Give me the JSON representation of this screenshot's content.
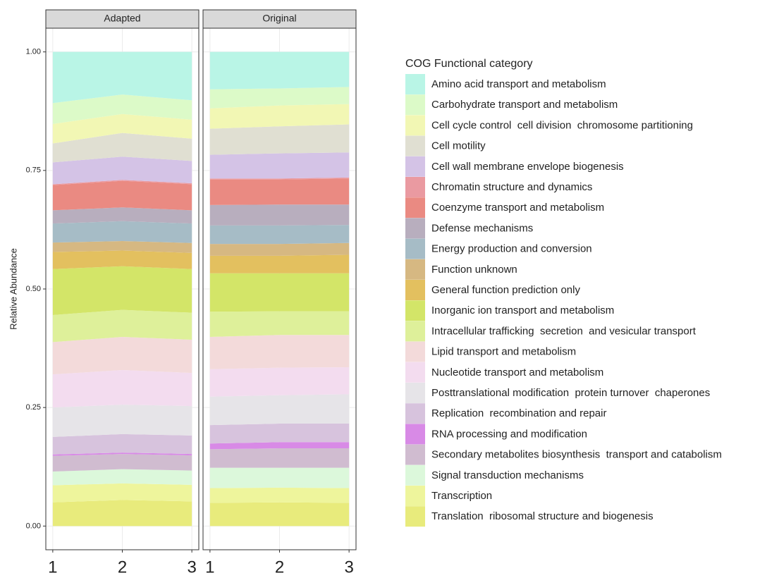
{
  "chart_data": [
    {
      "type": "area",
      "title": "Adapted",
      "ylabel": "Relative Abundance",
      "legend_title": "COG Functional category",
      "x": [
        1,
        2,
        3
      ],
      "xlim": [
        0.9,
        3.1
      ],
      "xticks": [
        1,
        2,
        3
      ],
      "ylim": [
        -0.05,
        1.05
      ],
      "yticks": [
        {
          "value": 0,
          "label": "0.00"
        },
        {
          "value": 0.25,
          "label": "0.25"
        },
        {
          "value": 0.5,
          "label": "0.50"
        },
        {
          "value": 0.75,
          "label": "0.75"
        },
        {
          "value": 1,
          "label": "1.00"
        }
      ],
      "grid": true,
      "stacked": true,
      "series": [
        {
          "name": "Amino acid transport and metabolism",
          "color": "#b9f5e6",
          "values": [
            0.108,
            0.09,
            0.102
          ]
        },
        {
          "name": "Carbohydrate transport and metabolism",
          "color": "#dcfac8",
          "values": [
            0.044,
            0.041,
            0.041
          ]
        },
        {
          "name": "Cell cycle control  cell division  chromosome partitioning",
          "color": "#f2f7b4",
          "values": [
            0.041,
            0.04,
            0.04
          ]
        },
        {
          "name": "Cell motility",
          "color": "#e0dfd2",
          "values": [
            0.04,
            0.05,
            0.047
          ]
        },
        {
          "name": "Cell wall membrane envelope biogenesis",
          "color": "#d4c3e6",
          "values": [
            0.046,
            0.049,
            0.047
          ]
        },
        {
          "name": "Chromatin structure and dynamics",
          "color": "#ea9aa1",
          "values": [
            0.002,
            0.002,
            0.002
          ]
        },
        {
          "name": "Coenzyme transport and metabolism",
          "color": "#ea8a82",
          "values": [
            0.053,
            0.056,
            0.055
          ]
        },
        {
          "name": "Defense mechanisms",
          "color": "#b8aebe",
          "values": [
            0.028,
            0.029,
            0.028
          ]
        },
        {
          "name": "Energy production and conversion",
          "color": "#a6bcc6",
          "values": [
            0.04,
            0.042,
            0.041
          ]
        },
        {
          "name": "Function unknown",
          "color": "#d6b882",
          "values": [
            0.02,
            0.02,
            0.021
          ]
        },
        {
          "name": "General function prediction only",
          "color": "#e3c05f",
          "values": [
            0.036,
            0.033,
            0.034
          ]
        },
        {
          "name": "Inorganic ion transport and metabolism",
          "color": "#d3e568",
          "values": [
            0.097,
            0.092,
            0.092
          ]
        },
        {
          "name": "Intracellular trafficking  secretion  and vesicular transport",
          "color": "#def09a",
          "values": [
            0.057,
            0.057,
            0.057
          ]
        },
        {
          "name": "Lipid transport and metabolism",
          "color": "#f3dada",
          "values": [
            0.068,
            0.07,
            0.07
          ]
        },
        {
          "name": "Nucleotide transport and metabolism",
          "color": "#f3dcef",
          "values": [
            0.07,
            0.073,
            0.07
          ]
        },
        {
          "name": "Posttranslational modification  protein turnover  chaperones",
          "color": "#e6e4e8",
          "values": [
            0.062,
            0.062,
            0.062
          ]
        },
        {
          "name": "Replication  recombination and repair",
          "color": "#d7c3dd",
          "values": [
            0.037,
            0.039,
            0.039
          ]
        },
        {
          "name": "RNA processing and modification",
          "color": "#d88ae6",
          "values": [
            0.003,
            0.003,
            0.003
          ]
        },
        {
          "name": "Secondary metabolites biosynthesis  transport and catabolism",
          "color": "#d0bcd0",
          "values": [
            0.033,
            0.032,
            0.032
          ]
        },
        {
          "name": "Signal transduction mechanisms",
          "color": "#dcf8db",
          "values": [
            0.029,
            0.03,
            0.03
          ]
        },
        {
          "name": "Transcription",
          "color": "#eef59c",
          "values": [
            0.036,
            0.035,
            0.035
          ]
        },
        {
          "name": "Translation  ribosomal structure and biogenesis",
          "color": "#e8eb7c",
          "values": [
            0.05,
            0.055,
            0.052
          ]
        }
      ]
    },
    {
      "type": "area",
      "title": "Original",
      "x": [
        1,
        2,
        3
      ],
      "xlim": [
        0.9,
        3.1
      ],
      "xticks": [
        1,
        2,
        3
      ],
      "ylim": [
        -0.05,
        1.05
      ],
      "grid": true,
      "stacked": true,
      "series": [
        {
          "name": "Amino acid transport and metabolism",
          "color": "#b9f5e6",
          "values": [
            0.079,
            0.077,
            0.074
          ]
        },
        {
          "name": "Carbohydrate transport and metabolism",
          "color": "#dcfac8",
          "values": [
            0.04,
            0.036,
            0.036
          ]
        },
        {
          "name": "Cell cycle control  cell division  chromosome partitioning",
          "color": "#f2f7b4",
          "values": [
            0.043,
            0.044,
            0.043
          ]
        },
        {
          "name": "Cell motility",
          "color": "#e0dfd2",
          "values": [
            0.055,
            0.057,
            0.059
          ]
        },
        {
          "name": "Cell wall membrane envelope biogenesis",
          "color": "#d4c3e6",
          "values": [
            0.05,
            0.053,
            0.053
          ]
        },
        {
          "name": "Chromatin structure and dynamics",
          "color": "#ea9aa1",
          "values": [
            0.002,
            0.002,
            0.002
          ]
        },
        {
          "name": "Coenzyme transport and metabolism",
          "color": "#ea8a82",
          "values": [
            0.054,
            0.053,
            0.055
          ]
        },
        {
          "name": "Defense mechanisms",
          "color": "#b8aebe",
          "values": [
            0.043,
            0.044,
            0.043
          ]
        },
        {
          "name": "Energy production and conversion",
          "color": "#a6bcc6",
          "values": [
            0.039,
            0.039,
            0.038
          ]
        },
        {
          "name": "Function unknown",
          "color": "#d6b882",
          "values": [
            0.025,
            0.025,
            0.025
          ]
        },
        {
          "name": "General function prediction only",
          "color": "#e3c05f",
          "values": [
            0.037,
            0.037,
            0.039
          ]
        },
        {
          "name": "Inorganic ion transport and metabolism",
          "color": "#d3e568",
          "values": [
            0.081,
            0.08,
            0.08
          ]
        },
        {
          "name": "Intracellular trafficking  secretion  and vesicular transport",
          "color": "#def09a",
          "values": [
            0.053,
            0.05,
            0.05
          ]
        },
        {
          "name": "Lipid transport and metabolism",
          "color": "#f3dada",
          "values": [
            0.068,
            0.069,
            0.068
          ]
        },
        {
          "name": "Nucleotide transport and metabolism",
          "color": "#f3dcef",
          "values": [
            0.058,
            0.058,
            0.057
          ]
        },
        {
          "name": "Posttranslational modification  protein turnover  chaperones",
          "color": "#e6e4e8",
          "values": [
            0.06,
            0.06,
            0.062
          ]
        },
        {
          "name": "Replication  recombination and repair",
          "color": "#d7c3dd",
          "values": [
            0.039,
            0.039,
            0.039
          ]
        },
        {
          "name": "RNA processing and modification",
          "color": "#d88ae6",
          "values": [
            0.012,
            0.013,
            0.013
          ]
        },
        {
          "name": "Secondary metabolites biosynthesis  transport and catabolism",
          "color": "#d0bcd0",
          "values": [
            0.039,
            0.041,
            0.041
          ]
        },
        {
          "name": "Signal transduction mechanisms",
          "color": "#dcf8db",
          "values": [
            0.043,
            0.042,
            0.043
          ]
        },
        {
          "name": "Transcription",
          "color": "#eef59c",
          "values": [
            0.031,
            0.031,
            0.031
          ]
        },
        {
          "name": "Translation  ribosomal structure and biogenesis",
          "color": "#e8eb7c",
          "values": [
            0.049,
            0.05,
            0.049
          ]
        }
      ]
    }
  ]
}
